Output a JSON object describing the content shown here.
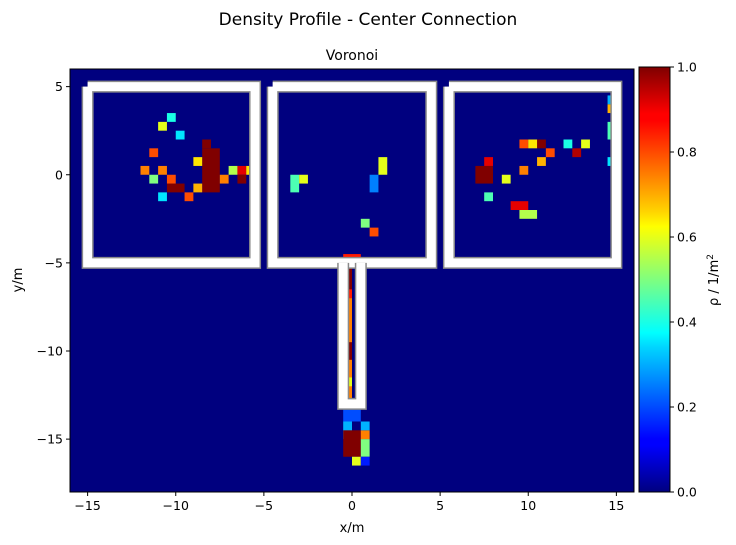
{
  "figure": {
    "suptitle": "Density Profile - Center Connection"
  },
  "chart_data": {
    "type": "heatmap",
    "title": "Voronoi",
    "xlabel": "x/m",
    "ylabel": "y/m",
    "xlim": [
      -16,
      16
    ],
    "ylim": [
      -18,
      6
    ],
    "xticks": [
      -15,
      -10,
      -5,
      0,
      5,
      10,
      15
    ],
    "yticks": [
      5,
      0,
      -5,
      -10,
      -15
    ],
    "colormap": "jet",
    "background_value": 0.0,
    "grid": false,
    "colorbar": {
      "label": "ρ / 1/m²",
      "label_main": "ρ / 1/m",
      "label_sup": "2",
      "range": [
        0,
        1
      ],
      "ticks": [
        "0.0",
        "0.2",
        "0.4",
        "0.6",
        "0.8",
        "1.0"
      ]
    },
    "cell_size": 0.5,
    "walls": [
      {
        "x": [
          -15,
          -5.5,
          -5.5,
          -15,
          -15
        ],
        "y": [
          5,
          5,
          -5,
          -5,
          5
        ]
      },
      {
        "x": [
          -4.5,
          4.5,
          4.5,
          -4.5,
          -4.5
        ],
        "y": [
          5,
          5,
          -5,
          -5,
          5
        ]
      },
      {
        "x": [
          5.5,
          15,
          15,
          5.5,
          5.5
        ],
        "y": [
          5,
          5,
          -5,
          -5,
          5
        ]
      },
      {
        "x": [
          -0.5,
          -0.5,
          0.5,
          0.5
        ],
        "y": [
          -5,
          -13,
          -13,
          -5
        ]
      }
    ],
    "cells": [
      {
        "x": [
          -8.5,
          -7.5
        ],
        "y": [
          -1,
          1.5
        ],
        "value": 1.0
      },
      {
        "x": [
          -10.5,
          -9.5
        ],
        "y": [
          -1,
          -0.5
        ],
        "value": 1.0
      },
      {
        "x": [
          -8.5,
          -8.0
        ],
        "y": [
          1.5,
          2.0
        ],
        "value": 1.0
      },
      {
        "x": [
          -12.0,
          -11.5
        ],
        "y": [
          0,
          0.5
        ],
        "value": 0.75
      },
      {
        "x": [
          -10.5,
          -10.0
        ],
        "y": [
          -0.5,
          0.0
        ],
        "value": 0.8
      },
      {
        "x": [
          -11.0,
          -10.5
        ],
        "y": [
          0.0,
          0.5
        ],
        "value": 0.75
      },
      {
        "x": [
          -11.5,
          -11.0
        ],
        "y": [
          -0.5,
          0.0
        ],
        "value": 0.5
      },
      {
        "x": [
          -11.0,
          -10.5
        ],
        "y": [
          -1.5,
          -1.0
        ],
        "value": 0.35
      },
      {
        "x": [
          -9.0,
          -8.5
        ],
        "y": [
          0.5,
          1.0
        ],
        "value": 0.65
      },
      {
        "x": [
          -9.0,
          -8.5
        ],
        "y": [
          -1.0,
          -0.5
        ],
        "value": 0.7
      },
      {
        "x": [
          -9.5,
          -9.0
        ],
        "y": [
          -1.5,
          -1.0
        ],
        "value": 0.8
      },
      {
        "x": [
          -11.0,
          -10.5
        ],
        "y": [
          2.5,
          3.0
        ],
        "value": 0.6
      },
      {
        "x": [
          -10.5,
          -10.0
        ],
        "y": [
          3.0,
          3.5
        ],
        "value": 0.4
      },
      {
        "x": [
          -10.0,
          -9.5
        ],
        "y": [
          2.0,
          2.5
        ],
        "value": 0.35
      },
      {
        "x": [
          -11.5,
          -11.0
        ],
        "y": [
          1.0,
          1.5
        ],
        "value": 0.8
      },
      {
        "x": [
          -7.5,
          -7.0
        ],
        "y": [
          -0.5,
          0.0
        ],
        "value": 0.75
      },
      {
        "x": [
          -7.0,
          -6.5
        ],
        "y": [
          0.0,
          0.5
        ],
        "value": 0.55
      },
      {
        "x": [
          -6.5,
          -6.0
        ],
        "y": [
          0.0,
          0.5
        ],
        "value": 0.9
      },
      {
        "x": [
          -6.5,
          -6.0
        ],
        "y": [
          -0.5,
          0.0
        ],
        "value": 1.0
      },
      {
        "x": [
          -6.0,
          -5.5
        ],
        "y": [
          0.0,
          0.5
        ],
        "value": 0.65
      },
      {
        "x": [
          -3.5,
          -3.0
        ],
        "y": [
          -1.0,
          0.0
        ],
        "value": 0.45
      },
      {
        "x": [
          -3.0,
          -2.5
        ],
        "y": [
          -0.5,
          0.0
        ],
        "value": 0.6
      },
      {
        "x": [
          1.5,
          2.0
        ],
        "y": [
          0.0,
          1.0
        ],
        "value": 0.6
      },
      {
        "x": [
          1.0,
          1.5
        ],
        "y": [
          -1.0,
          0.0
        ],
        "value": 0.25
      },
      {
        "x": [
          1.0,
          1.5
        ],
        "y": [
          -3.5,
          -3.0
        ],
        "value": 0.8
      },
      {
        "x": [
          0.5,
          1.0
        ],
        "y": [
          -3.0,
          -2.5
        ],
        "value": 0.5
      },
      {
        "x": [
          -0.5,
          0.5
        ],
        "y": [
          -5.0,
          -4.5
        ],
        "value": 0.85
      },
      {
        "x": [
          -0.5,
          0.0
        ],
        "y": [
          -6.5,
          -5.0
        ],
        "value": 1.0
      },
      {
        "x": [
          -0.5,
          0.0
        ],
        "y": [
          -7.0,
          -6.5
        ],
        "value": 0.85
      },
      {
        "x": [
          -0.5,
          0.0
        ],
        "y": [
          -13.0,
          -7.0
        ],
        "value": 0.75
      },
      {
        "x": [
          -0.5,
          0.0
        ],
        "y": [
          -10.5,
          -9.5
        ],
        "value": 1.0
      },
      {
        "x": [
          -0.5,
          0.0
        ],
        "y": [
          -12.0,
          -11.5
        ],
        "value": 0.6
      },
      {
        "x": [
          -0.5,
          0.5
        ],
        "y": [
          -14.0,
          -13.0
        ],
        "value": 0.2
      },
      {
        "x": [
          -0.5,
          0.0
        ],
        "y": [
          -15.0,
          -14.0
        ],
        "value": 0.3
      },
      {
        "x": [
          -0.5,
          0.5
        ],
        "y": [
          -16.0,
          -14.5
        ],
        "value": 1.0
      },
      {
        "x": [
          0.5,
          1.0
        ],
        "y": [
          -16.0,
          -15.0
        ],
        "value": 0.5
      },
      {
        "x": [
          0.5,
          1.0
        ],
        "y": [
          -15.0,
          -14.5
        ],
        "value": 0.75
      },
      {
        "x": [
          0.5,
          1.0
        ],
        "y": [
          -14.5,
          -14.0
        ],
        "value": 0.3
      },
      {
        "x": [
          0.0,
          0.5
        ],
        "y": [
          -16.5,
          -16.0
        ],
        "value": 0.6
      },
      {
        "x": [
          0.5,
          1.0
        ],
        "y": [
          -16.5,
          -16.0
        ],
        "value": 0.15
      },
      {
        "x": [
          7.0,
          8.0
        ],
        "y": [
          -0.5,
          0.5
        ],
        "value": 1.0
      },
      {
        "x": [
          7.5,
          8.0
        ],
        "y": [
          0.5,
          1.0
        ],
        "value": 0.9
      },
      {
        "x": [
          9.0,
          10.0
        ],
        "y": [
          -2.0,
          -1.5
        ],
        "value": 0.9
      },
      {
        "x": [
          9.5,
          10.5
        ],
        "y": [
          -2.5,
          -2.0
        ],
        "value": 0.55
      },
      {
        "x": [
          10.5,
          11.0
        ],
        "y": [
          1.5,
          2.0
        ],
        "value": 1.0
      },
      {
        "x": [
          9.5,
          10.0
        ],
        "y": [
          1.5,
          2.0
        ],
        "value": 0.8
      },
      {
        "x": [
          10.0,
          10.5
        ],
        "y": [
          1.5,
          2.0
        ],
        "value": 0.65
      },
      {
        "x": [
          11.0,
          11.5
        ],
        "y": [
          1.0,
          1.5
        ],
        "value": 0.8
      },
      {
        "x": [
          9.5,
          10.0
        ],
        "y": [
          0.0,
          0.5
        ],
        "value": 0.75
      },
      {
        "x": [
          10.5,
          11.0
        ],
        "y": [
          0.5,
          1.0
        ],
        "value": 0.7
      },
      {
        "x": [
          8.5,
          9.0
        ],
        "y": [
          -0.5,
          0.0
        ],
        "value": 0.6
      },
      {
        "x": [
          12.5,
          13.0
        ],
        "y": [
          1.0,
          1.5
        ],
        "value": 0.95
      },
      {
        "x": [
          12.0,
          12.5
        ],
        "y": [
          1.5,
          2.0
        ],
        "value": 0.4
      },
      {
        "x": [
          13.0,
          13.5
        ],
        "y": [
          1.5,
          2.0
        ],
        "value": 0.6
      },
      {
        "x": [
          7.5,
          8.0
        ],
        "y": [
          -1.5,
          -1.0
        ],
        "value": 0.45
      },
      {
        "x": [
          14.5,
          15.0
        ],
        "y": [
          3.5,
          4.0
        ],
        "value": 0.7
      },
      {
        "x": [
          14.5,
          15.0
        ],
        "y": [
          2.0,
          3.0
        ],
        "value": 0.45
      },
      {
        "x": [
          14.5,
          15.0
        ],
        "y": [
          0.5,
          1.0
        ],
        "value": 0.35
      },
      {
        "x": [
          14.5,
          15.0
        ],
        "y": [
          4.0,
          4.5
        ],
        "value": 0.3
      }
    ]
  }
}
